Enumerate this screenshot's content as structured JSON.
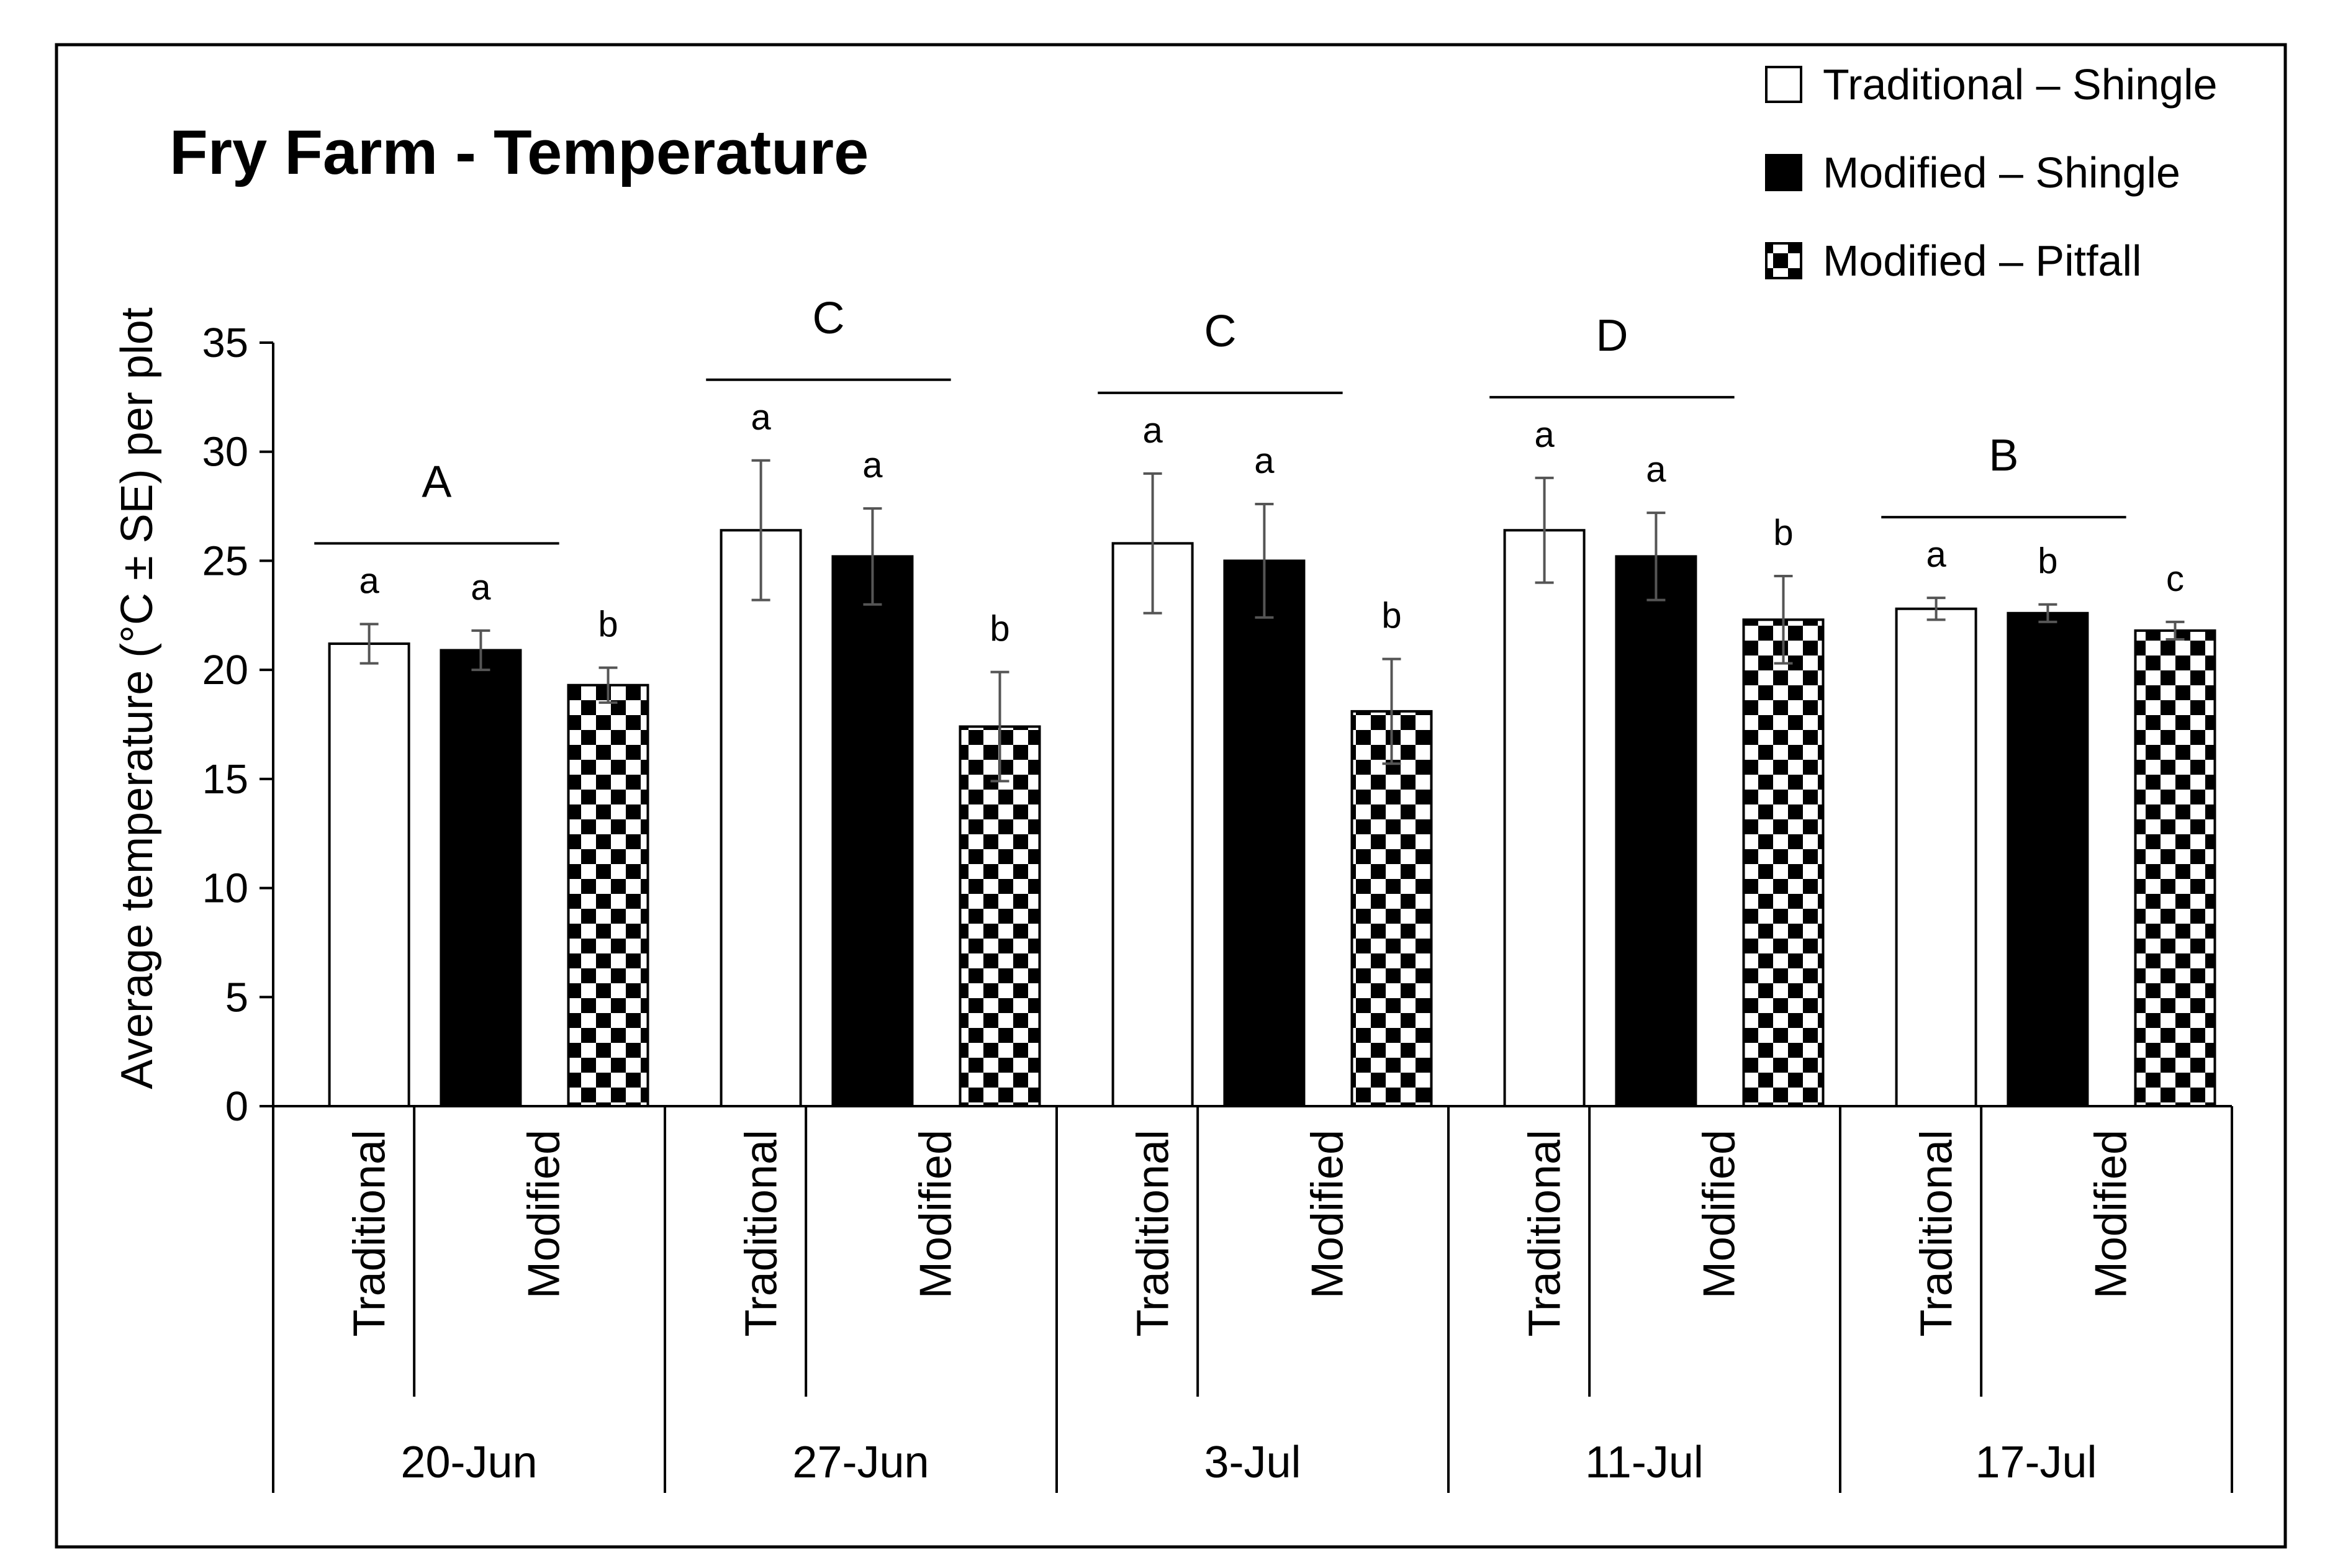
{
  "chart_data": {
    "type": "bar",
    "title": "Fry Farm - Temperature",
    "ylabel": "Average temperature (°C ± SE) per plot",
    "ylim": [
      0,
      35
    ],
    "yticks": [
      0,
      5,
      10,
      15,
      20,
      25,
      30,
      35
    ],
    "dates": [
      "20-Jun",
      "27-Jun",
      "3-Jul",
      "11-Jul",
      "17-Jul"
    ],
    "method_labels": [
      "Traditional",
      "Modified"
    ],
    "legend_position": "top-right",
    "series": [
      {
        "name": "Traditional – Shingle",
        "fill": "#ffffff",
        "values": [
          21.2,
          26.4,
          25.8,
          26.4,
          22.8
        ],
        "se": [
          0.9,
          3.2,
          3.2,
          2.4,
          0.5
        ],
        "letters": [
          "a",
          "a",
          "a",
          "a",
          "a"
        ]
      },
      {
        "name": "Modified – Shingle",
        "fill": "#000000",
        "values": [
          20.9,
          25.2,
          25.0,
          25.2,
          22.6
        ],
        "se": [
          0.9,
          2.2,
          2.6,
          2.0,
          0.4
        ],
        "letters": [
          "a",
          "a",
          "a",
          "a",
          "b"
        ]
      },
      {
        "name": "Modified – Pitfall",
        "fill": "checkerboard",
        "values": [
          19.3,
          17.4,
          18.1,
          22.3,
          21.8
        ],
        "se": [
          0.8,
          2.5,
          2.4,
          2.0,
          0.4
        ],
        "letters": [
          "b",
          "b",
          "b",
          "b",
          "c"
        ]
      }
    ],
    "group_letters": [
      "A",
      "C",
      "C",
      "D",
      "B"
    ],
    "colors": {
      "axis": "#000000",
      "error_bar": "#555555",
      "frame": "#000000"
    }
  }
}
